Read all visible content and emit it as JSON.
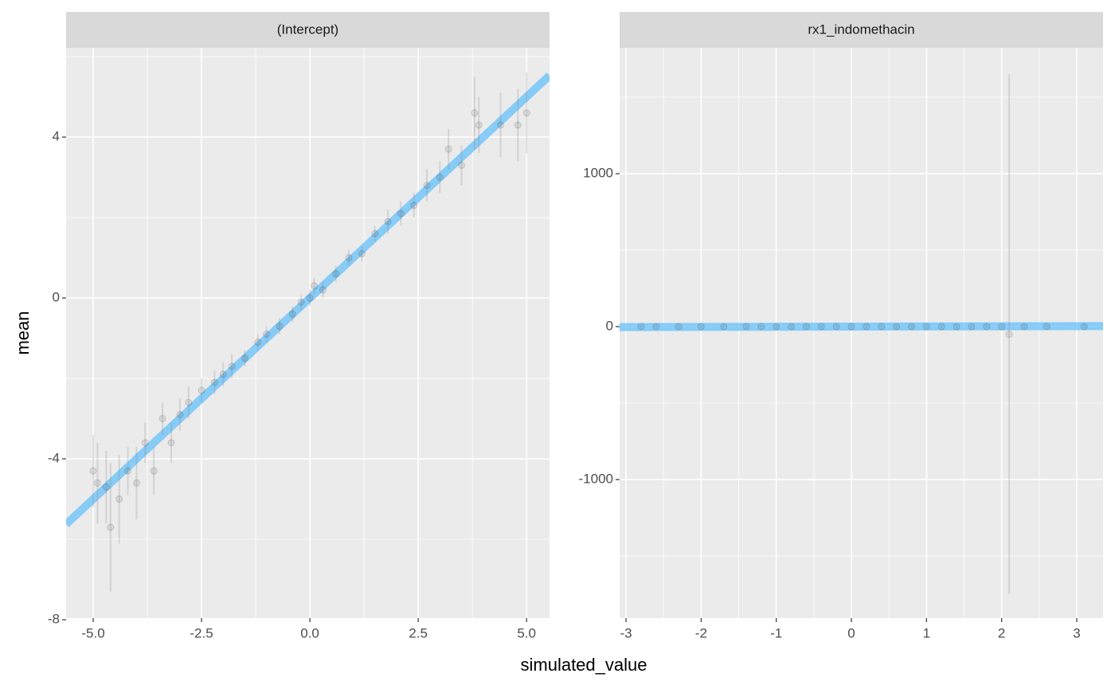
{
  "chart_data": [
    {
      "type": "scatter",
      "title": "(Intercept)",
      "x_label": "simulated_value",
      "y_label": "mean",
      "x": [
        -5.0,
        -4.9,
        -4.7,
        -4.6,
        -4.4,
        -4.2,
        -4.0,
        -3.8,
        -3.6,
        -3.4,
        -3.2,
        -3.0,
        -2.8,
        -2.5,
        -2.2,
        -2.0,
        -1.8,
        -1.5,
        -1.2,
        -1.0,
        -0.7,
        -0.4,
        -0.2,
        0.0,
        0.1,
        0.3,
        0.6,
        0.9,
        1.2,
        1.5,
        1.8,
        2.1,
        2.4,
        2.7,
        3.0,
        3.2,
        3.5,
        3.8,
        3.9,
        4.4,
        4.8,
        5.0
      ],
      "values": [
        -4.3,
        -4.6,
        -4.7,
        -5.7,
        -5.0,
        -4.3,
        -4.6,
        -3.6,
        -4.3,
        -3.0,
        -3.6,
        -2.9,
        -2.6,
        -2.3,
        -2.1,
        -1.9,
        -1.7,
        -1.5,
        -1.1,
        -0.9,
        -0.7,
        -0.4,
        -0.1,
        0.0,
        0.3,
        0.2,
        0.6,
        1.0,
        1.1,
        1.6,
        1.9,
        2.1,
        2.3,
        2.8,
        3.0,
        3.7,
        3.3,
        4.6,
        4.3,
        4.3,
        4.3,
        4.6
      ],
      "errors": [
        0.9,
        1.0,
        0.9,
        1.6,
        1.1,
        0.6,
        0.9,
        0.5,
        0.6,
        0.4,
        0.5,
        0.4,
        0.4,
        0.3,
        0.3,
        0.3,
        0.3,
        0.2,
        0.2,
        0.2,
        0.2,
        0.2,
        0.2,
        0.2,
        0.2,
        0.2,
        0.2,
        0.2,
        0.2,
        0.2,
        0.3,
        0.3,
        0.3,
        0.4,
        0.4,
        0.5,
        0.5,
        0.9,
        0.7,
        0.8,
        0.9,
        1.0
      ],
      "color": "#000000",
      "reference_line": {
        "slope": 1,
        "intercept": 0,
        "color": "#6ec3fa"
      },
      "xlim": [
        -5.625,
        5.53
      ],
      "ylim": [
        -7.96,
        6.22
      ],
      "xticks": [
        {
          "value": -5,
          "label": "-5.0"
        },
        -2.5,
        {
          "value": 0,
          "label": "0.0"
        },
        2.5,
        {
          "value": 5,
          "label": "5.0"
        }
      ],
      "yticks": [
        -8,
        -4,
        0,
        4
      ],
      "grid": true
    },
    {
      "type": "scatter",
      "title": "rx1_indomethacin",
      "x": [
        -2.8,
        -2.6,
        -2.3,
        -2.0,
        -1.7,
        -1.4,
        -1.2,
        -1.0,
        -0.8,
        -0.6,
        -0.4,
        -0.2,
        0,
        0.2,
        0.4,
        0.6,
        0.8,
        1.0,
        1.2,
        1.4,
        1.6,
        1.8,
        2.0,
        2.1,
        2.3,
        2.6,
        3.1
      ],
      "values": [
        0,
        0,
        0,
        0,
        0,
        0,
        0,
        0,
        0,
        0,
        0,
        0,
        0,
        0,
        0,
        0,
        0,
        0,
        0,
        0,
        0,
        0,
        0,
        -50,
        0,
        0,
        0
      ],
      "errors": [
        5,
        5,
        5,
        5,
        5,
        5,
        5,
        5,
        5,
        5,
        5,
        5,
        5,
        5,
        5,
        5,
        5,
        5,
        5,
        5,
        5,
        5,
        5,
        1700,
        5,
        5,
        5
      ],
      "color": "#000000",
      "reference_line": {
        "slope": 1,
        "intercept": 0,
        "color": "#6ec3fa"
      },
      "xlim": [
        -3.085,
        3.35
      ],
      "ylim": [
        -1906,
        1823
      ],
      "xticks": [
        -3,
        -2,
        -1,
        0,
        1,
        2,
        3
      ],
      "yticks": [
        -1000,
        0,
        1000
      ],
      "grid": true
    }
  ]
}
